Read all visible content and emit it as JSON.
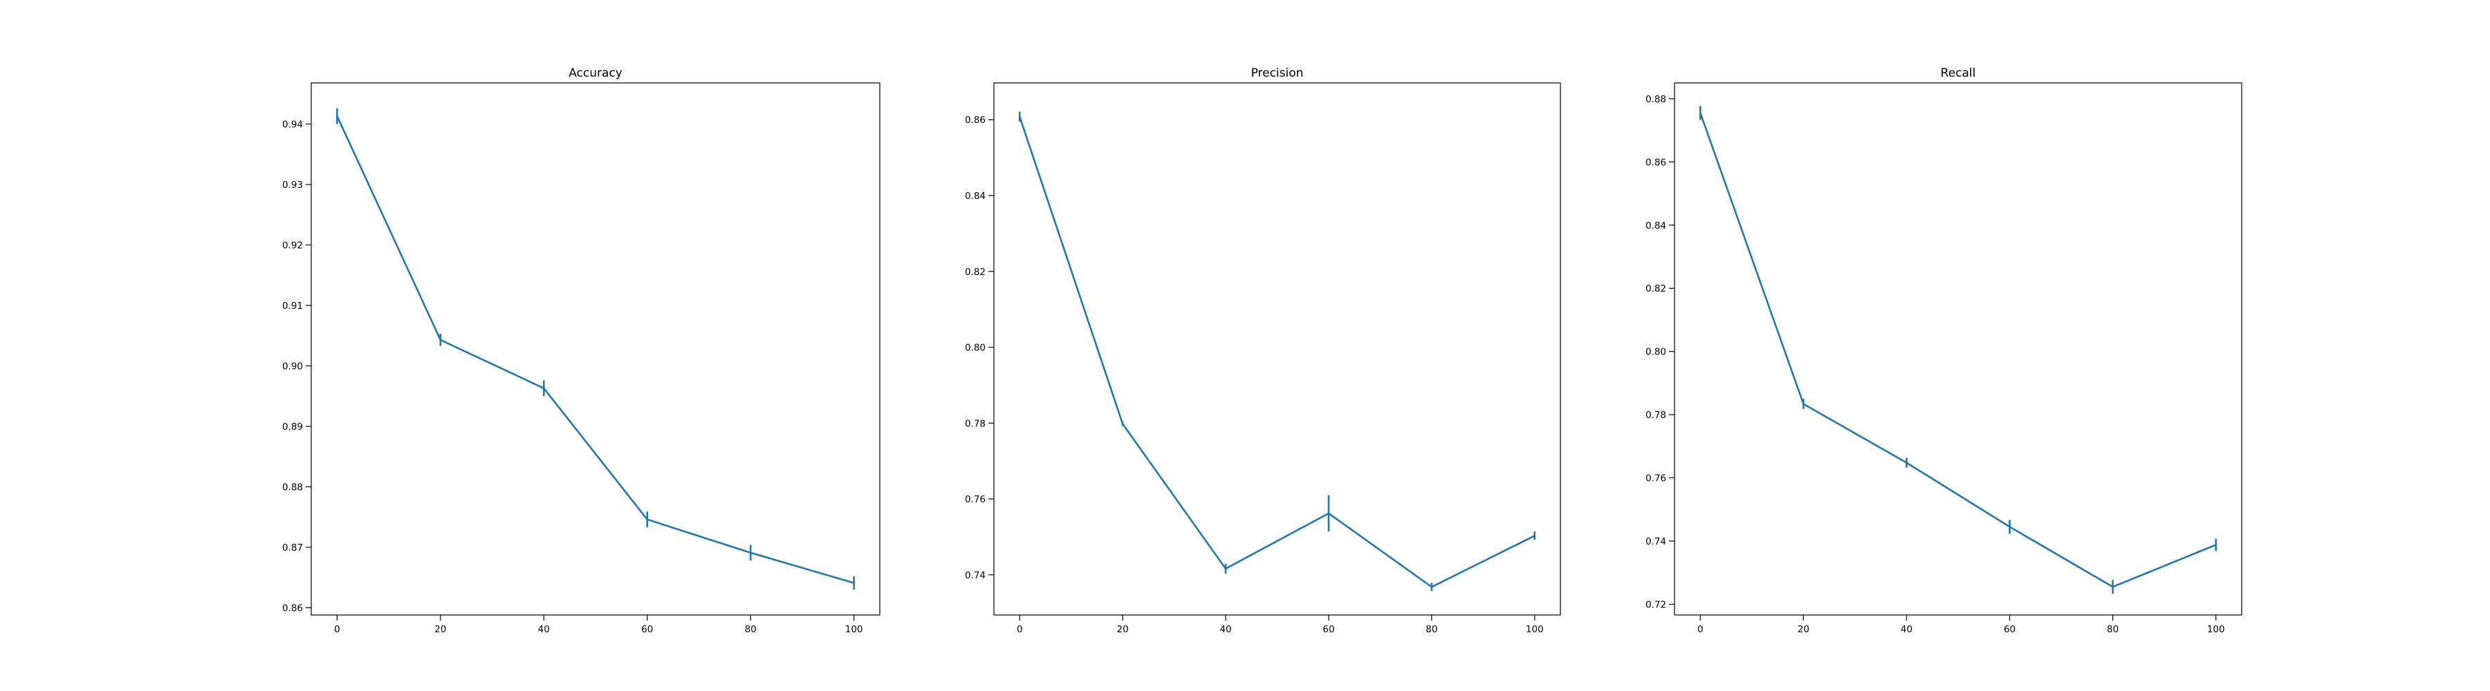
{
  "chart_data": [
    {
      "type": "line",
      "title": "Accuracy",
      "xlabel": "",
      "ylabel": "",
      "x": [
        0,
        20,
        40,
        60,
        80,
        100
      ],
      "series": [
        {
          "values": [
            0.9413,
            0.9043,
            0.8963,
            0.8746,
            0.8691,
            0.8641
          ],
          "errors": [
            0.0013,
            0.001,
            0.0013,
            0.0013,
            0.0013,
            0.0011
          ]
        }
      ],
      "xlim": [
        -5,
        105
      ],
      "ylim": [
        0.8588,
        0.9468
      ],
      "xticks": [
        "0",
        "20",
        "40",
        "60",
        "80",
        "100"
      ],
      "yticks": [
        "0.86",
        "0.87",
        "0.88",
        "0.89",
        "0.90",
        "0.91",
        "0.92",
        "0.93",
        "0.94"
      ],
      "grid": false,
      "color": "#1f77b4"
    },
    {
      "type": "line",
      "title": "Precision",
      "xlabel": "",
      "ylabel": "",
      "x": [
        0,
        20,
        40,
        60,
        80,
        100
      ],
      "series": [
        {
          "values": [
            0.8608,
            0.7798,
            0.7416,
            0.7562,
            0.7368,
            0.7503
          ],
          "errors": [
            0.0013,
            0.0006,
            0.0013,
            0.0048,
            0.0011,
            0.0011
          ]
        }
      ],
      "xlim": [
        -5,
        105
      ],
      "ylim": [
        0.7294,
        0.8697
      ],
      "xticks": [
        "0",
        "20",
        "40",
        "60",
        "80",
        "100"
      ],
      "yticks": [
        "0.74",
        "0.76",
        "0.78",
        "0.80",
        "0.82",
        "0.84",
        "0.86"
      ],
      "grid": false,
      "color": "#1f77b4"
    },
    {
      "type": "line",
      "title": "Recall",
      "xlabel": "",
      "ylabel": "",
      "x": [
        0,
        20,
        40,
        60,
        80,
        100
      ],
      "series": [
        {
          "values": [
            0.8755,
            0.7834,
            0.7648,
            0.7445,
            0.7255,
            0.7388
          ],
          "errors": [
            0.0022,
            0.0016,
            0.0016,
            0.0022,
            0.0022,
            0.002
          ]
        }
      ],
      "xlim": [
        -5,
        105
      ],
      "ylim": [
        0.7166,
        0.885
      ],
      "xticks": [
        "0",
        "20",
        "40",
        "60",
        "80",
        "100"
      ],
      "yticks": [
        "0.72",
        "0.74",
        "0.76",
        "0.78",
        "0.80",
        "0.82",
        "0.84",
        "0.86",
        "0.88"
      ],
      "grid": false,
      "color": "#1f77b4"
    }
  ]
}
